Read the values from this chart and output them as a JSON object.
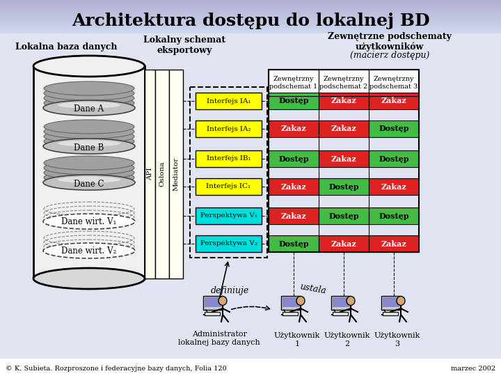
{
  "title": "Architektura dostępu do lokalnej BD",
  "bg_color": "#e8e8f0",
  "title_bg_color": "#9090c0",
  "col1_header": "Lokalna baza danych",
  "col2_header": "Lokalny schemat\neksportowy",
  "col3_header": "Zewnętrzne podschematy\nużytkowników",
  "col3_header_italic": "(macierz dostępu)",
  "sub_headers": [
    "Zewnętrzny\npodschemat 1",
    "Zewnętrzny\npodschemat 2",
    "Zewnętrzny\npodschemat 3"
  ],
  "data_items": [
    "Dane A",
    "Dane B",
    "Dane C"
  ],
  "virt_items": [
    "Dane wirt. V₁",
    "Dane wirt. V₂"
  ],
  "interfaces": [
    "Interfejs IA₁",
    "Interfejs IA₂",
    "Interfejs IB₁",
    "Interfejs IC₁"
  ],
  "perspectives": [
    "Perspektywa V₁",
    "Perspektywa V₂"
  ],
  "api_label": "API",
  "oslona_label": "Osłona",
  "mediator_label": "Mediator",
  "access_matrix": [
    [
      "Dostęp",
      "Zakaz",
      "Zakaz"
    ],
    [
      "Zakaz",
      "Zakaz",
      "Dostęp"
    ],
    [
      "Dostęp",
      "Zakaz",
      "Dostęp"
    ],
    [
      "Zakaz",
      "Dostęp",
      "Zakaz"
    ],
    [
      "Zakaz",
      "Dostęp",
      "Dostęp"
    ],
    [
      "Dostęp",
      "Zakaz",
      "Zakaz"
    ]
  ],
  "dostep_color": "#44bb44",
  "zakaz_color": "#dd2222",
  "dostep_text_color": "#000000",
  "zakaz_text_color": "#ffffff",
  "interface_color": "#ffff00",
  "perspective_color": "#00dddd",
  "footer_text": "© K. Subieta. Rozproszone i federacyjne bazy danych, Folia 120",
  "footer_right": "marzec 2002",
  "definiuje_text": "definiuje",
  "ustala_text": "ustala",
  "admin_label": "Administrator\nlokalnej bazy danych",
  "user_labels": [
    "Użytkownik\n1",
    "Użytkownik\n2",
    "Użytkownik\n3"
  ]
}
